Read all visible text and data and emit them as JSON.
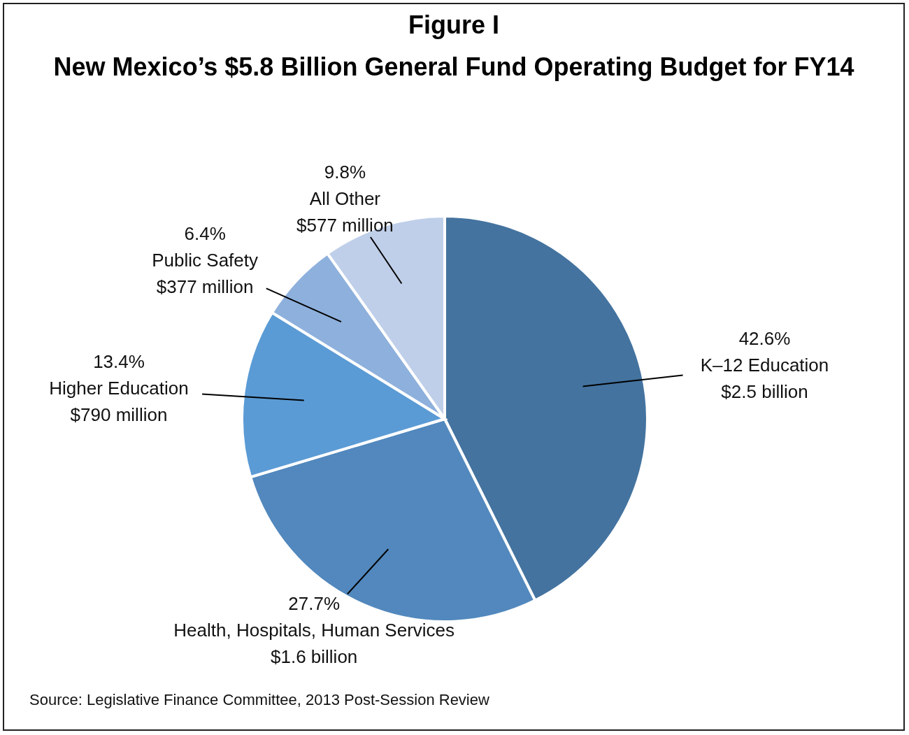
{
  "chart_data": {
    "type": "pie",
    "title": "Figure I",
    "subtitle": "New Mexico’s $5.8 Billion General Fund Operating Budget for FY14",
    "categories": [
      "K–12 Education",
      "Health, Hospitals, Human Services",
      "Higher Education",
      "Public Safety",
      "All Other"
    ],
    "values": [
      42.6,
      27.7,
      13.4,
      6.4,
      9.8
    ],
    "colors": [
      "#44739f",
      "#5288bd",
      "#5b9bd5",
      "#8eb0dc",
      "#bfcfe9"
    ],
    "value_labels": [
      "42.6%",
      "27.7%",
      "13.4%",
      "6.4%",
      "9.8%"
    ],
    "legend": false,
    "annotations": [
      {
        "text": "$2.5 billion",
        "x": "K–12 Education"
      },
      {
        "text": "$1.6 billion",
        "x": "Health, Hospitals, Human Services"
      },
      {
        "text": "$790 million",
        "x": "Higher Education"
      },
      {
        "text": "$377 million",
        "x": "Public Safety"
      },
      {
        "text": "$577 million",
        "x": "All Other"
      },
      "Source: Legislative Finance Committee, 2013 Post-Session Review"
    ]
  }
}
